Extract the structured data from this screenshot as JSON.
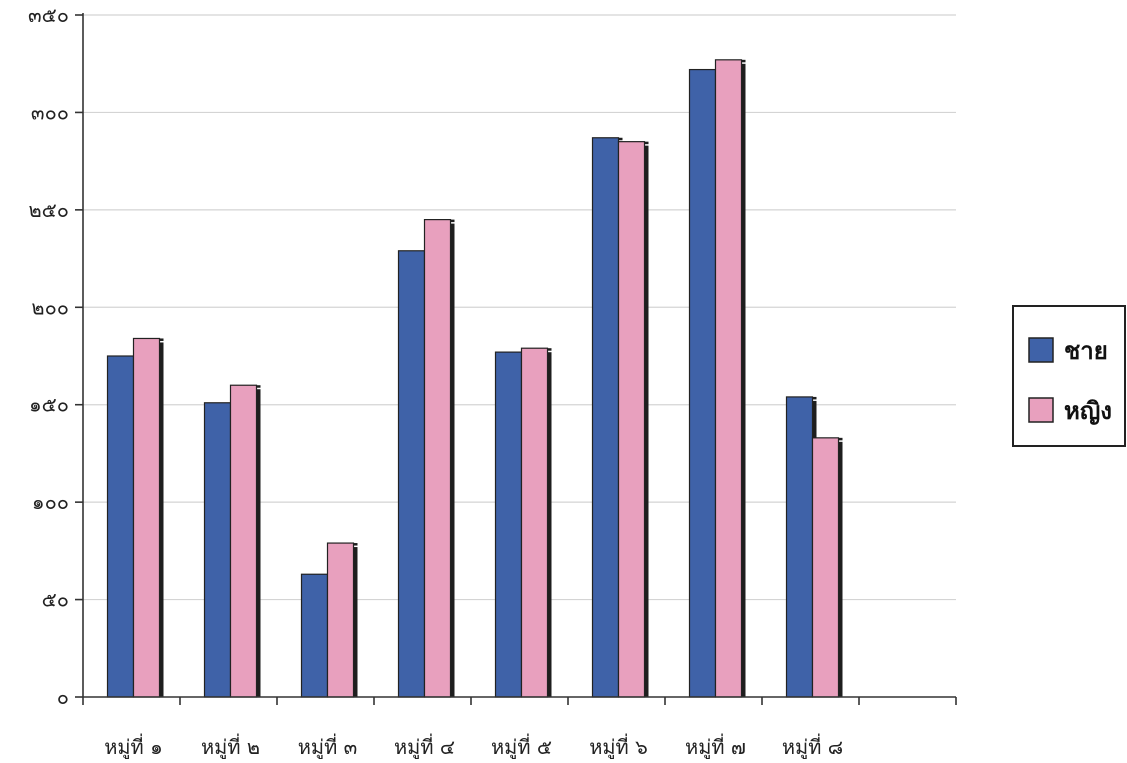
{
  "chart_data": {
    "type": "bar",
    "title": "",
    "xlabel": "",
    "ylabel": "",
    "categories": [
      "หมู่ที่ ๑",
      "หมู่ที่ ๒",
      "หมู่ที่ ๓",
      "หมู่ที่ ๔",
      "หมู่ที่ ๕",
      "หมู่ที่ ๖",
      "หมู่ที่ ๗",
      "หมู่ที่ ๘"
    ],
    "series": [
      {
        "name": "ชาย",
        "values": [
          175,
          151,
          63,
          229,
          177,
          287,
          322,
          154
        ],
        "color": "#3f62a8"
      },
      {
        "name": "หญิง",
        "values": [
          184,
          160,
          79,
          245,
          179,
          285,
          327,
          133
        ],
        "color": "#e8a0be"
      }
    ],
    "ylim": [
      0,
      350
    ],
    "yticks": [
      0,
      50,
      100,
      150,
      200,
      250,
      300,
      350
    ],
    "ytick_labels": [
      "๐",
      "๕๐",
      "๑๐๐",
      "๑๕๐",
      "๒๐๐",
      "๒๕๐",
      "๓๐๐",
      "๓๕๐"
    ],
    "grid": true,
    "legend_position": "right",
    "num_slots": 9
  }
}
